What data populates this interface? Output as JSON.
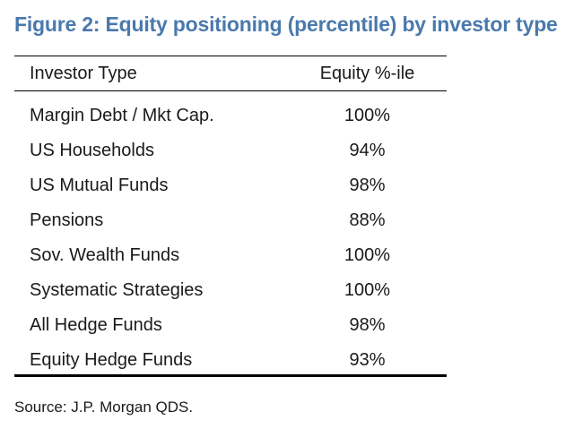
{
  "figure": {
    "title": "Figure 2: Equity positioning (percentile) by investor type",
    "source": "Source: J.P. Morgan QDS."
  },
  "table": {
    "headers": {
      "type": "Investor Type",
      "value": "Equity %-ile"
    },
    "rows": [
      {
        "type": "Margin Debt / Mkt Cap.",
        "value": "100%"
      },
      {
        "type": "US Households",
        "value": "94%"
      },
      {
        "type": "US Mutual Funds",
        "value": "98%"
      },
      {
        "type": "Pensions",
        "value": "88%"
      },
      {
        "type": "Sov. Wealth Funds",
        "value": "100%"
      },
      {
        "type": "Systematic Strategies",
        "value": "100%"
      },
      {
        "type": "All Hedge Funds",
        "value": "98%"
      },
      {
        "type": "Equity Hedge Funds",
        "value": "93%"
      }
    ]
  }
}
